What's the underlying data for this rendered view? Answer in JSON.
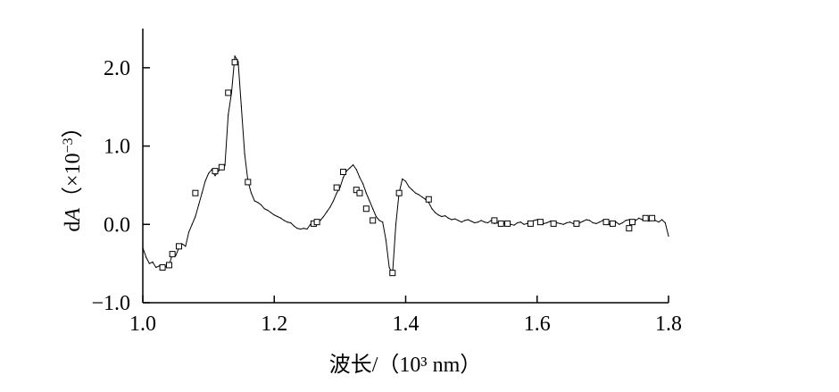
{
  "chart_data": {
    "type": "line",
    "title": "",
    "xlabel": "波长/（10³ nm）",
    "ylabel": "dA（×10⁻³）",
    "ylabel_parts": {
      "d": "d",
      "A": "A",
      "rest": "（×10",
      "exp": "−3",
      "close": "）"
    },
    "xlim": [
      1.0,
      1.8
    ],
    "ylim": [
      -1.0,
      2.5
    ],
    "x_ticks": [
      {
        "value": 1.0,
        "label": "1.0"
      },
      {
        "value": 1.2,
        "label": "1.2"
      },
      {
        "value": 1.4,
        "label": "1.4"
      },
      {
        "value": 1.6,
        "label": "1.6"
      },
      {
        "value": 1.8,
        "label": "1.8"
      }
    ],
    "y_ticks": [
      {
        "value": -1.0,
        "label": "−1.0"
      },
      {
        "value": 0.0,
        "label": "0.0"
      },
      {
        "value": 1.0,
        "label": "1.0"
      },
      {
        "value": 2.0,
        "label": "2.0"
      }
    ],
    "grid": false,
    "legend": "none",
    "series": [
      {
        "color": "#000000",
        "marker": "open-square",
        "points": [
          [
            1.0,
            -0.3
          ],
          [
            1.005,
            -0.42
          ],
          [
            1.01,
            -0.5
          ],
          [
            1.015,
            -0.48
          ],
          [
            1.02,
            -0.55
          ],
          [
            1.025,
            -0.53
          ],
          [
            1.03,
            -0.56
          ],
          [
            1.035,
            -0.54
          ],
          [
            1.04,
            -0.52
          ],
          [
            1.045,
            -0.38
          ],
          [
            1.05,
            -0.4
          ],
          [
            1.055,
            -0.3
          ],
          [
            1.06,
            -0.25
          ],
          [
            1.065,
            -0.28
          ],
          [
            1.07,
            -0.1
          ],
          [
            1.075,
            0.0
          ],
          [
            1.08,
            0.1
          ],
          [
            1.085,
            0.25
          ],
          [
            1.09,
            0.4
          ],
          [
            1.095,
            0.55
          ],
          [
            1.1,
            0.65
          ],
          [
            1.105,
            0.7
          ],
          [
            1.11,
            0.62
          ],
          [
            1.115,
            0.68
          ],
          [
            1.12,
            0.72
          ],
          [
            1.125,
            0.75
          ],
          [
            1.13,
            1.4
          ],
          [
            1.135,
            1.68
          ],
          [
            1.14,
            2.15
          ],
          [
            1.145,
            2.08
          ],
          [
            1.15,
            1.5
          ],
          [
            1.155,
            0.9
          ],
          [
            1.16,
            0.55
          ],
          [
            1.165,
            0.4
          ],
          [
            1.17,
            0.3
          ],
          [
            1.175,
            0.28
          ],
          [
            1.18,
            0.25
          ],
          [
            1.185,
            0.2
          ],
          [
            1.19,
            0.18
          ],
          [
            1.195,
            0.15
          ],
          [
            1.2,
            0.12
          ],
          [
            1.205,
            0.1
          ],
          [
            1.21,
            0.08
          ],
          [
            1.215,
            0.05
          ],
          [
            1.22,
            0.03
          ],
          [
            1.225,
            0.02
          ],
          [
            1.23,
            -0.02
          ],
          [
            1.235,
            -0.05
          ],
          [
            1.24,
            -0.06
          ],
          [
            1.245,
            -0.05
          ],
          [
            1.25,
            -0.06
          ],
          [
            1.255,
            0.0
          ],
          [
            1.26,
            0.01
          ],
          [
            1.265,
            0.02
          ],
          [
            1.27,
            0.05
          ],
          [
            1.275,
            0.1
          ],
          [
            1.28,
            0.16
          ],
          [
            1.285,
            0.22
          ],
          [
            1.29,
            0.3
          ],
          [
            1.295,
            0.4
          ],
          [
            1.3,
            0.47
          ],
          [
            1.305,
            0.6
          ],
          [
            1.31,
            0.68
          ],
          [
            1.315,
            0.72
          ],
          [
            1.32,
            0.76
          ],
          [
            1.325,
            0.7
          ],
          [
            1.33,
            0.6
          ],
          [
            1.335,
            0.52
          ],
          [
            1.34,
            0.4
          ],
          [
            1.345,
            0.3
          ],
          [
            1.35,
            0.2
          ],
          [
            1.355,
            0.1
          ],
          [
            1.36,
            0.05
          ],
          [
            1.365,
            0.03
          ],
          [
            1.37,
            -0.2
          ],
          [
            1.375,
            -0.55
          ],
          [
            1.38,
            -0.63
          ],
          [
            1.385,
            0.0
          ],
          [
            1.39,
            0.4
          ],
          [
            1.395,
            0.58
          ],
          [
            1.4,
            0.55
          ],
          [
            1.405,
            0.48
          ],
          [
            1.41,
            0.44
          ],
          [
            1.415,
            0.4
          ],
          [
            1.42,
            0.38
          ],
          [
            1.425,
            0.35
          ],
          [
            1.43,
            0.32
          ],
          [
            1.435,
            0.28
          ],
          [
            1.44,
            0.2
          ],
          [
            1.445,
            0.15
          ],
          [
            1.45,
            0.12
          ],
          [
            1.455,
            0.1
          ],
          [
            1.46,
            0.11
          ],
          [
            1.465,
            0.08
          ],
          [
            1.47,
            0.06
          ],
          [
            1.475,
            0.07
          ],
          [
            1.48,
            0.05
          ],
          [
            1.485,
            0.03
          ],
          [
            1.49,
            0.05
          ],
          [
            1.495,
            0.06
          ],
          [
            1.5,
            0.04
          ],
          [
            1.505,
            0.02
          ],
          [
            1.51,
            0.03
          ],
          [
            1.515,
            0.05
          ],
          [
            1.52,
            0.03
          ],
          [
            1.525,
            0.02
          ],
          [
            1.53,
            0.05
          ],
          [
            1.535,
            0.01
          ],
          [
            1.54,
            0.02
          ],
          [
            1.545,
            0.0
          ],
          [
            1.55,
            0.01
          ],
          [
            1.555,
            0.02
          ],
          [
            1.56,
            0.0
          ],
          [
            1.565,
            -0.01
          ],
          [
            1.57,
            0.02
          ],
          [
            1.575,
            0.03
          ],
          [
            1.58,
            0.0
          ],
          [
            1.585,
            0.01
          ],
          [
            1.59,
            0.02
          ],
          [
            1.595,
            0.05
          ],
          [
            1.6,
            0.06
          ],
          [
            1.605,
            0.03
          ],
          [
            1.61,
            0.01
          ],
          [
            1.615,
            0.02
          ],
          [
            1.62,
            0.04
          ],
          [
            1.625,
            0.0
          ],
          [
            1.63,
            0.02
          ],
          [
            1.635,
            0.01
          ],
          [
            1.64,
            0.0
          ],
          [
            1.645,
            0.02
          ],
          [
            1.65,
            0.03
          ],
          [
            1.655,
            0.01
          ],
          [
            1.66,
            0.0
          ],
          [
            1.665,
            0.02
          ],
          [
            1.67,
            0.04
          ],
          [
            1.675,
            0.06
          ],
          [
            1.68,
            0.05
          ],
          [
            1.685,
            0.02
          ],
          [
            1.69,
            0.01
          ],
          [
            1.695,
            0.03
          ],
          [
            1.7,
            0.05
          ],
          [
            1.705,
            0.02
          ],
          [
            1.71,
            0.0
          ],
          [
            1.715,
            0.04
          ],
          [
            1.72,
            0.03
          ],
          [
            1.725,
            0.0
          ],
          [
            1.73,
            0.02
          ],
          [
            1.735,
            0.05
          ],
          [
            1.74,
            0.06
          ],
          [
            1.745,
            0.03
          ],
          [
            1.75,
            0.05
          ],
          [
            1.755,
            0.08
          ],
          [
            1.76,
            0.06
          ],
          [
            1.765,
            0.1
          ],
          [
            1.77,
            0.04
          ],
          [
            1.775,
            0.08
          ],
          [
            1.78,
            0.05
          ],
          [
            1.785,
            0.03
          ],
          [
            1.79,
            0.06
          ],
          [
            1.795,
            0.02
          ],
          [
            1.8,
            -0.15
          ]
        ],
        "markers": [
          [
            1.03,
            -0.55
          ],
          [
            1.04,
            -0.52
          ],
          [
            1.045,
            -0.38
          ],
          [
            1.055,
            -0.28
          ],
          [
            1.08,
            0.4
          ],
          [
            1.11,
            0.68
          ],
          [
            1.12,
            0.73
          ],
          [
            1.13,
            1.68
          ],
          [
            1.14,
            2.07
          ],
          [
            1.16,
            0.54
          ],
          [
            1.26,
            0.01
          ],
          [
            1.265,
            0.03
          ],
          [
            1.295,
            0.47
          ],
          [
            1.305,
            0.67
          ],
          [
            1.325,
            0.44
          ],
          [
            1.33,
            0.4
          ],
          [
            1.34,
            0.2
          ],
          [
            1.35,
            0.05
          ],
          [
            1.38,
            -0.62
          ],
          [
            1.39,
            0.4
          ],
          [
            1.435,
            0.32
          ],
          [
            1.535,
            0.05
          ],
          [
            1.545,
            0.01
          ],
          [
            1.555,
            0.01
          ],
          [
            1.59,
            0.01
          ],
          [
            1.605,
            0.03
          ],
          [
            1.625,
            0.01
          ],
          [
            1.66,
            0.01
          ],
          [
            1.705,
            0.03
          ],
          [
            1.715,
            0.01
          ],
          [
            1.74,
            -0.05
          ],
          [
            1.745,
            0.03
          ],
          [
            1.765,
            0.08
          ],
          [
            1.775,
            0.08
          ]
        ]
      }
    ]
  }
}
